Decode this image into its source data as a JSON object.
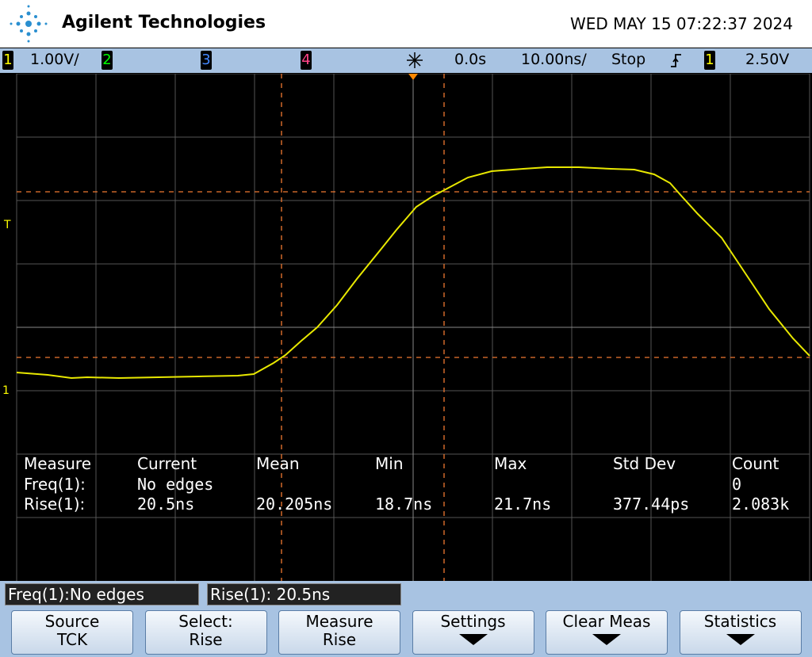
{
  "header": {
    "brand": "Agilent Technologies",
    "datetime": "WED MAY 15 07:22:37 2024"
  },
  "status": {
    "ch1": "1",
    "ch1_scale": "1.00V/",
    "ch2": "2",
    "ch3": "3",
    "ch4": "4",
    "time_offset": "0.0s",
    "timebase": "10.00ns/",
    "run_state": "Stop",
    "trigger_source": "1",
    "trigger_level": "2.50V"
  },
  "markers": {
    "trigger": "T",
    "ch1": "1"
  },
  "measurements": {
    "headers": [
      "Measure",
      "Current",
      "Mean",
      "Min",
      "Max",
      "Std Dev",
      "Count"
    ],
    "freq": {
      "label": "Freq(1):",
      "current": "No edges",
      "count": "0"
    },
    "rise": {
      "label": "Rise(1):",
      "current": "20.5ns",
      "mean": "20.205ns",
      "min": "18.7ns",
      "max": "21.7ns",
      "std_dev": "377.44ps",
      "count": "2.083k"
    }
  },
  "info_boxes": [
    "Freq(1):No edges",
    "Rise(1): 20.5ns"
  ],
  "softkeys": [
    {
      "label": "Source",
      "value": "TCK"
    },
    {
      "label": "Select:",
      "value": "Rise"
    },
    {
      "label": "Measure",
      "value": "Rise"
    },
    {
      "label": "Settings"
    },
    {
      "label": "Clear Meas"
    },
    {
      "label": "Statistics"
    }
  ]
}
